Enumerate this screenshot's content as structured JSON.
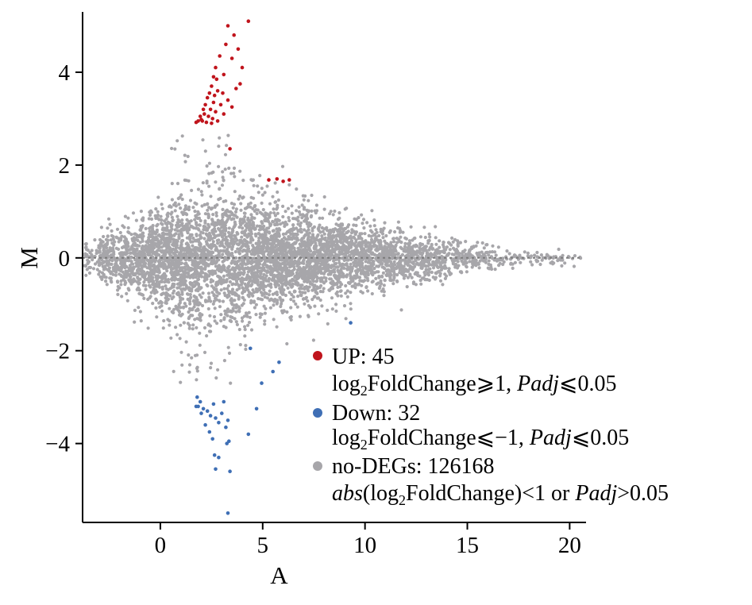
{
  "chart_data": {
    "type": "scatter",
    "title": "",
    "xlabel": "A",
    "ylabel": "M",
    "xlim": [
      -3.8,
      20.8
    ],
    "ylim": [
      -5.7,
      5.3
    ],
    "xticks": [
      0,
      5,
      10,
      15,
      20
    ],
    "yticks": [
      -4,
      -2,
      0,
      2,
      4
    ],
    "xtick_labels": [
      "0",
      "5",
      "10",
      "15",
      "20"
    ],
    "ytick_labels": [
      "−4",
      "−2",
      "0",
      "2",
      "4"
    ],
    "grid": false,
    "reference_line": {
      "y": 0,
      "style": "dotted",
      "color": "#7a7a7a"
    },
    "legend_position": "lower-right",
    "colors": {
      "up": "#c0141c",
      "down": "#3f6fb5",
      "nodeg": "#a7a6aa"
    },
    "series": [
      {
        "key": "up",
        "name": "UP: 45",
        "condition_parts": [
          "log",
          "2",
          "FoldChange⩾1, ",
          "Padj",
          "⩽0.05"
        ],
        "count": 45,
        "points": [
          [
            4.3,
            5.1
          ],
          [
            3.3,
            5.0
          ],
          [
            3.6,
            4.8
          ],
          [
            3.2,
            4.6
          ],
          [
            3.8,
            4.5
          ],
          [
            2.9,
            4.35
          ],
          [
            3.5,
            4.3
          ],
          [
            4.0,
            4.1
          ],
          [
            2.7,
            4.1
          ],
          [
            3.1,
            3.95
          ],
          [
            2.6,
            3.9
          ],
          [
            2.75,
            3.85
          ],
          [
            3.9,
            3.75
          ],
          [
            2.5,
            3.7
          ],
          [
            3.7,
            3.65
          ],
          [
            2.8,
            3.6
          ],
          [
            2.4,
            3.55
          ],
          [
            3.05,
            3.55
          ],
          [
            2.65,
            3.5
          ],
          [
            2.3,
            3.45
          ],
          [
            3.3,
            3.4
          ],
          [
            2.6,
            3.35
          ],
          [
            2.2,
            3.3
          ],
          [
            2.95,
            3.3
          ],
          [
            3.5,
            3.25
          ],
          [
            2.45,
            3.2
          ],
          [
            2.1,
            3.2
          ],
          [
            2.7,
            3.15
          ],
          [
            2.15,
            3.1
          ],
          [
            3.1,
            3.1
          ],
          [
            2.35,
            3.05
          ],
          [
            1.95,
            3.05
          ],
          [
            2.55,
            3.0
          ],
          [
            2.0,
            2.98
          ],
          [
            2.8,
            2.95
          ],
          [
            1.85,
            2.95
          ],
          [
            2.25,
            2.92
          ],
          [
            1.75,
            2.92
          ],
          [
            2.5,
            2.9
          ],
          [
            2.05,
            2.95
          ],
          [
            3.4,
            2.35
          ],
          [
            5.3,
            1.68
          ],
          [
            5.7,
            1.7
          ],
          [
            6.3,
            1.68
          ],
          [
            6.0,
            1.65
          ]
        ]
      },
      {
        "key": "down",
        "name": "Down: 32",
        "condition_parts": [
          "log",
          "2",
          "FoldChange⩽−1, ",
          "Padj",
          "⩽0.05"
        ],
        "count": 32,
        "points": [
          [
            9.3,
            -1.4
          ],
          [
            4.4,
            -1.95
          ],
          [
            5.8,
            -2.25
          ],
          [
            5.5,
            -2.45
          ],
          [
            4.95,
            -2.7
          ],
          [
            1.8,
            -3.0
          ],
          [
            1.95,
            -3.1
          ],
          [
            1.85,
            -3.2
          ],
          [
            2.1,
            -3.25
          ],
          [
            1.75,
            -3.2
          ],
          [
            2.3,
            -3.3
          ],
          [
            2.0,
            -3.35
          ],
          [
            2.6,
            -3.15
          ],
          [
            3.1,
            -3.1
          ],
          [
            2.45,
            -3.4
          ],
          [
            2.7,
            -3.45
          ],
          [
            2.85,
            -3.55
          ],
          [
            3.0,
            -3.35
          ],
          [
            3.3,
            -3.5
          ],
          [
            4.7,
            -3.25
          ],
          [
            2.2,
            -3.6
          ],
          [
            3.2,
            -3.65
          ],
          [
            2.4,
            -3.75
          ],
          [
            4.3,
            -3.8
          ],
          [
            2.55,
            -3.9
          ],
          [
            3.35,
            -3.95
          ],
          [
            3.25,
            -4.0
          ],
          [
            2.65,
            -4.25
          ],
          [
            2.85,
            -4.3
          ],
          [
            2.7,
            -4.55
          ],
          [
            3.4,
            -4.6
          ],
          [
            3.3,
            -5.5
          ]
        ]
      },
      {
        "key": "nodeg",
        "name": "no-DEGs: 126168",
        "condition_parts": [
          "abs",
          "(log",
          "2",
          "FoldChange)<1 or ",
          "Padj",
          ">0.05"
        ],
        "count": 126168
      }
    ]
  }
}
